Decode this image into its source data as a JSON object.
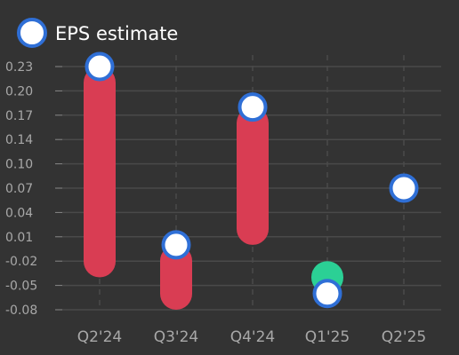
{
  "chart_data": {
    "type": "scatter",
    "categories": [
      "Q2'24",
      "Q3'24",
      "Q4'24",
      "Q1'25",
      "Q2'25"
    ],
    "series": [
      {
        "name": "EPS estimate",
        "values": [
          0.23,
          0.0,
          0.18,
          -0.06,
          0.07
        ]
      }
    ],
    "actuals": [
      -0.04,
      -0.08,
      0.0,
      -0.02,
      null
    ],
    "yticks": [
      0.23,
      0.2,
      0.17,
      0.14,
      0.1,
      0.07,
      0.04,
      0.01,
      -0.02,
      -0.05,
      -0.08
    ],
    "ytick_labels": [
      "0.23",
      "0.20",
      "0.17",
      "0.14",
      "0.10",
      "0.07",
      "0.04",
      "0.01",
      "-0.02",
      "-0.05",
      "-0.08"
    ],
    "ylim": [
      -0.08,
      0.23
    ],
    "grid": true,
    "legend_position": "top-left",
    "colors": {
      "background": "#333333",
      "miss": "#d93d53",
      "beat": "#2bd095",
      "marker_fill": "#ffffff",
      "marker_stroke": "#2f6fd6",
      "grid": "#4a4a4a"
    }
  }
}
